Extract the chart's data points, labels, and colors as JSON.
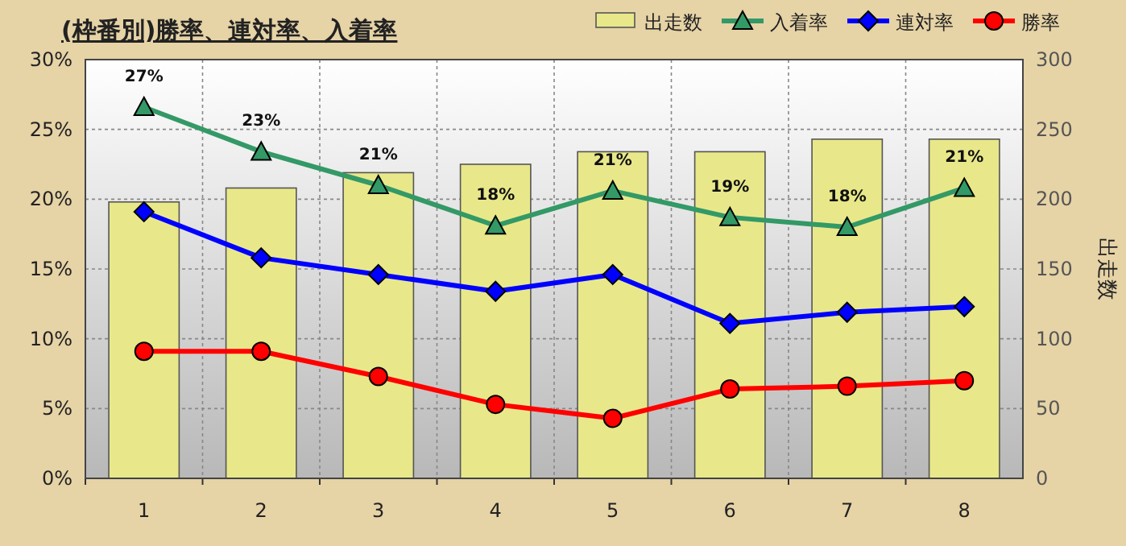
{
  "chart_data": {
    "type": "bar",
    "title": "(枠番別)勝率、連対率、入着率",
    "categories": [
      "1",
      "2",
      "3",
      "4",
      "5",
      "6",
      "7",
      "8"
    ],
    "series": [
      {
        "name": "出走数",
        "axis": "y2",
        "color": "#e8e88a",
        "values": [
          198,
          208,
          219,
          225,
          234,
          234,
          243,
          243
        ]
      },
      {
        "name": "入着率",
        "type": "line",
        "color": "#339966",
        "marker": "triangle",
        "values": [
          26.6,
          23.4,
          21.0,
          18.1,
          20.6,
          18.7,
          18.0,
          20.8
        ],
        "value_labels": [
          "27%",
          "23%",
          "21%",
          "18%",
          "21%",
          "19%",
          "18%",
          "21%"
        ]
      },
      {
        "name": "連対率",
        "type": "line",
        "color": "#0000ff",
        "marker": "diamond",
        "values": [
          19.1,
          15.8,
          14.6,
          13.4,
          14.6,
          11.1,
          11.9,
          12.3
        ]
      },
      {
        "name": "勝率",
        "type": "line",
        "color": "#ff0000",
        "marker": "circle",
        "values": [
          9.1,
          9.1,
          7.3,
          5.3,
          4.3,
          6.4,
          6.6,
          7.0
        ]
      }
    ],
    "ylim": [
      0,
      30
    ],
    "yticks": [
      {
        "value": 0,
        "label": "0%"
      },
      {
        "value": 5,
        "label": "5%"
      },
      {
        "value": 10,
        "label": "10%"
      },
      {
        "value": 15,
        "label": "15%"
      },
      {
        "value": 20,
        "label": "20%"
      },
      {
        "value": 25,
        "label": "25%"
      },
      {
        "value": 30,
        "label": "30%"
      }
    ],
    "y2label": "出走数",
    "y2lim": [
      0,
      300
    ],
    "y2ticks": [
      0,
      50,
      100,
      150,
      200,
      250,
      300
    ],
    "grid": true,
    "legend": "top right",
    "line_style": "solid"
  }
}
